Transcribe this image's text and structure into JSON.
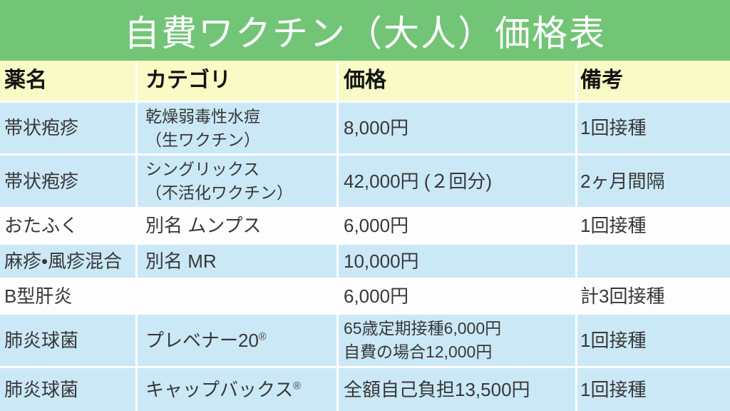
{
  "title": "自費ワクチン（大人）価格表",
  "colors": {
    "title_bg": "#72c576",
    "title_text": "#ffffff",
    "header_bg": "#f9fac5",
    "header_text": "#141414",
    "row_blue": "#cbe8f7",
    "row_white": "#fdfdfd",
    "gap": "#ffffff",
    "text": "#383838"
  },
  "table": {
    "fields": [
      "drug-name",
      "category",
      "price",
      "note"
    ],
    "columns": [
      "薬名",
      "カテゴリ",
      "価格",
      "備考"
    ],
    "rows": [
      {
        "bg": "blue",
        "cells": [
          [
            "帯状疱疹"
          ],
          [
            "乾燥弱毒性水痘",
            "（生ワクチン）"
          ],
          [
            "8,000円"
          ],
          [
            "1回接種"
          ]
        ]
      },
      {
        "bg": "blue",
        "cells": [
          [
            "帯状疱疹"
          ],
          [
            "シングリックス",
            "（不活化ワクチン）"
          ],
          [
            "42,000円 (２回分)"
          ],
          [
            "2ヶ月間隔"
          ]
        ]
      },
      {
        "bg": "white",
        "cells": [
          [
            "おたふく"
          ],
          [
            "別名 ムンプス"
          ],
          [
            "6,000円"
          ],
          [
            "1回接種"
          ]
        ]
      },
      {
        "bg": "blue",
        "cells": [
          [
            "麻疹•風疹混合"
          ],
          [
            "別名 MR"
          ],
          [
            "10,000円"
          ],
          []
        ]
      },
      {
        "bg": "white",
        "cells": [
          [
            "B型肝炎"
          ],
          [],
          [
            "6,000円"
          ],
          [
            "計3回接種"
          ]
        ]
      },
      {
        "bg": "blue",
        "cells": [
          [
            "肺炎球菌"
          ],
          [
            "プレベナー20®"
          ],
          [
            "65歳定期接種6,000円",
            "自費の場合12,000円"
          ],
          [
            "1回接種"
          ]
        ]
      },
      {
        "bg": "blue",
        "cells": [
          [
            "肺炎球菌"
          ],
          [
            "キャップバックス®"
          ],
          [
            "全額自己負担13,500円"
          ],
          [
            "1回接種"
          ]
        ]
      }
    ]
  },
  "chart_data": {
    "type": "table",
    "title": "自費ワクチン（大人）価格表",
    "columns": [
      "薬名",
      "カテゴリ",
      "価格",
      "備考"
    ],
    "rows": [
      [
        "帯状疱疹",
        "乾燥弱毒性水痘（生ワクチン）",
        "8,000円",
        "1回接種"
      ],
      [
        "帯状疱疹",
        "シングリックス（不活化ワクチン）",
        "42,000円 (２回分)",
        "2ヶ月間隔"
      ],
      [
        "おたふく",
        "別名 ムンプス",
        "6,000円",
        "1回接種"
      ],
      [
        "麻疹•風疹混合",
        "別名 MR",
        "10,000円",
        ""
      ],
      [
        "B型肝炎",
        "",
        "6,000円",
        "計3回接種"
      ],
      [
        "肺炎球菌",
        "プレベナー20®",
        "65歳定期接種6,000円 自費の場合12,000円",
        "1回接種"
      ],
      [
        "肺炎球菌",
        "キャップバックス®",
        "全額自己負担13,500円",
        "1回接種"
      ]
    ]
  }
}
